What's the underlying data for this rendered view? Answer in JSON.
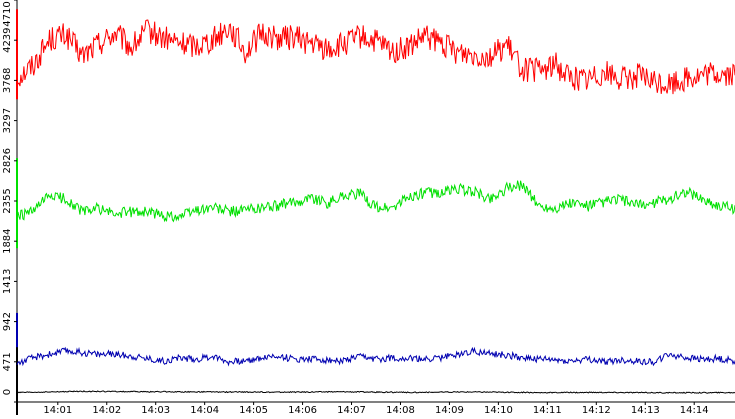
{
  "chart_data": {
    "type": "line",
    "title": "",
    "xlabel": "",
    "ylabel": "",
    "x_ticks": [
      "14:01",
      "14:02",
      "14:03",
      "14:04",
      "14:05",
      "14:06",
      "14:07",
      "14:08",
      "14:09",
      "14:10",
      "14:11",
      "14:12",
      "14:13",
      "14:14"
    ],
    "y_ticks": [
      "0",
      "471",
      "942",
      "1413",
      "1884",
      "2355",
      "2826",
      "3297",
      "3768",
      "4239",
      "4710"
    ],
    "x_range": [
      "14:00:10",
      "14:14:50"
    ],
    "ylim": [
      0,
      4710
    ],
    "grid": false,
    "legend": "none",
    "series": [
      {
        "color": "#ff0000",
        "x": [
          "14:00:10",
          "14:00:30",
          "14:00:50",
          "14:01:10",
          "14:01:30",
          "14:01:50",
          "14:02:10",
          "14:02:30",
          "14:02:50",
          "14:03:10",
          "14:03:30",
          "14:03:50",
          "14:04:10",
          "14:04:30",
          "14:04:50",
          "14:05:10",
          "14:05:30",
          "14:05:50",
          "14:06:10",
          "14:06:30",
          "14:06:50",
          "14:07:10",
          "14:07:30",
          "14:07:50",
          "14:08:10",
          "14:08:30",
          "14:08:50",
          "14:09:10",
          "14:09:30",
          "14:09:50",
          "14:10:10",
          "14:10:30",
          "14:10:50",
          "14:11:10",
          "14:11:30",
          "14:11:50",
          "14:12:10",
          "14:12:30",
          "14:12:50",
          "14:13:10",
          "14:13:30",
          "14:13:50",
          "14:14:10",
          "14:14:30",
          "14:14:50"
        ],
        "y": [
          3800,
          3950,
          4250,
          4300,
          4050,
          4200,
          4320,
          4150,
          4350,
          4260,
          4200,
          4180,
          4250,
          4400,
          4100,
          4320,
          4260,
          4280,
          4200,
          4130,
          4180,
          4280,
          4220,
          4100,
          4150,
          4280,
          4200,
          4100,
          4080,
          4050,
          4180,
          3900,
          3880,
          3950,
          3800,
          3780,
          3880,
          3780,
          3820,
          3750,
          3720,
          3800,
          3820,
          3850,
          3820
        ]
      },
      {
        "color": "#00e000",
        "x": [
          "14:00:10",
          "14:00:30",
          "14:00:50",
          "14:01:10",
          "14:01:30",
          "14:01:50",
          "14:02:10",
          "14:02:30",
          "14:02:50",
          "14:03:10",
          "14:03:30",
          "14:03:50",
          "14:04:10",
          "14:04:30",
          "14:04:50",
          "14:05:10",
          "14:05:30",
          "14:05:50",
          "14:06:10",
          "14:06:30",
          "14:06:50",
          "14:07:10",
          "14:07:30",
          "14:07:50",
          "14:08:10",
          "14:08:30",
          "14:08:50",
          "14:09:10",
          "14:09:30",
          "14:09:50",
          "14:10:10",
          "14:10:30",
          "14:10:50",
          "14:11:10",
          "14:11:30",
          "14:11:50",
          "14:12:10",
          "14:12:30",
          "14:12:50",
          "14:13:10",
          "14:13:30",
          "14:13:50",
          "14:14:10",
          "14:14:30",
          "14:14:50"
        ],
        "y": [
          2170,
          2230,
          2420,
          2380,
          2230,
          2270,
          2200,
          2230,
          2230,
          2180,
          2180,
          2250,
          2280,
          2230,
          2250,
          2280,
          2300,
          2340,
          2400,
          2330,
          2420,
          2440,
          2280,
          2270,
          2400,
          2450,
          2450,
          2500,
          2460,
          2380,
          2500,
          2550,
          2290,
          2270,
          2330,
          2290,
          2340,
          2380,
          2300,
          2330,
          2380,
          2470,
          2380,
          2300,
          2270
        ]
      },
      {
        "color": "#0000b0",
        "x": [
          "14:00:10",
          "14:00:30",
          "14:00:50",
          "14:01:10",
          "14:01:30",
          "14:01:50",
          "14:02:10",
          "14:02:30",
          "14:02:50",
          "14:03:10",
          "14:03:30",
          "14:03:50",
          "14:04:10",
          "14:04:30",
          "14:04:50",
          "14:05:10",
          "14:05:30",
          "14:05:50",
          "14:06:10",
          "14:06:30",
          "14:06:50",
          "14:07:10",
          "14:07:30",
          "14:07:50",
          "14:08:10",
          "14:08:30",
          "14:08:50",
          "14:09:10",
          "14:09:30",
          "14:09:50",
          "14:10:10",
          "14:10:30",
          "14:10:50",
          "14:11:10",
          "14:11:30",
          "14:11:50",
          "14:12:10",
          "14:12:30",
          "14:12:50",
          "14:13:10",
          "14:13:30",
          "14:13:50",
          "14:14:10",
          "14:14:30",
          "14:14:50"
        ],
        "y": [
          450,
          520,
          560,
          600,
          580,
          560,
          560,
          540,
          510,
          480,
          520,
          500,
          540,
          470,
          480,
          520,
          540,
          500,
          510,
          490,
          480,
          530,
          500,
          520,
          510,
          500,
          520,
          560,
          600,
          560,
          550,
          520,
          500,
          490,
          480,
          500,
          470,
          490,
          480,
          470,
          560,
          520,
          500,
          510,
          480
        ]
      },
      {
        "color": "#000000",
        "x": [
          "14:00:10",
          "14:01:30",
          "14:02:50",
          "14:04:10",
          "14:05:30",
          "14:06:50",
          "14:08:10",
          "14:09:30",
          "14:10:50",
          "14:12:10",
          "14:13:30",
          "14:14:50"
        ],
        "y": [
          110,
          125,
          120,
          118,
          115,
          120,
          112,
          118,
          110,
          112,
          108,
          110
        ]
      }
    ]
  }
}
